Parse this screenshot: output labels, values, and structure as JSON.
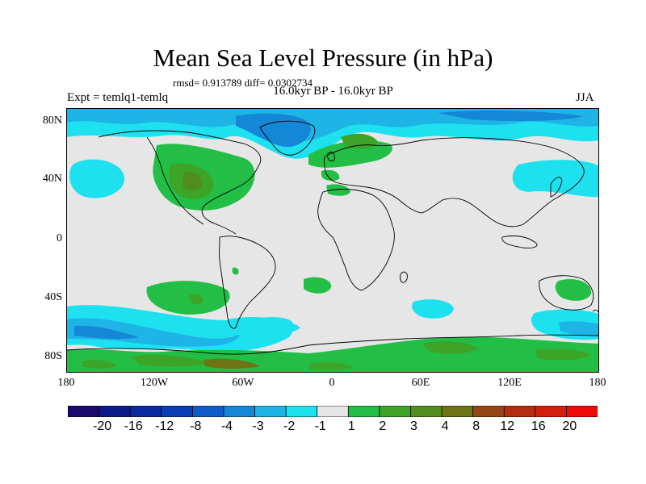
{
  "title": "Mean Sea Level Pressure (in hPa)",
  "stats": "rmsd= 0.913789 diff= 0.0302734",
  "subtitle": "16.0kyr BP - 16.0kyr BP",
  "expt": "Expt = temlq1-temlq",
  "season": "JJA",
  "lat_labels": [
    "80N",
    "40N",
    "0",
    "40S",
    "80S"
  ],
  "lon_labels": [
    "180",
    "120W",
    "60W",
    "0",
    "60E",
    "120E",
    "180"
  ],
  "colorbar": {
    "labels": [
      "-20",
      "-16",
      "-12",
      "-8",
      "-4",
      "-3",
      "-2",
      "-1",
      "1",
      "2",
      "3",
      "4",
      "8",
      "12",
      "16",
      "20"
    ],
    "colors": [
      "#1a0a6e",
      "#0d1a8c",
      "#0a2aa0",
      "#0a3fb4",
      "#0f5cc8",
      "#1487d7",
      "#1eb4e6",
      "#1ee1f0",
      "#e6e6e6",
      "#23be46",
      "#3ca528",
      "#508c1e",
      "#6e7314",
      "#964614",
      "#b42d0f",
      "#d21e0a",
      "#f00a0a"
    ]
  },
  "colors": {
    "background": "#e6e6e6",
    "ocean_neutral": "#e6e6e6",
    "coast": "#000000"
  }
}
